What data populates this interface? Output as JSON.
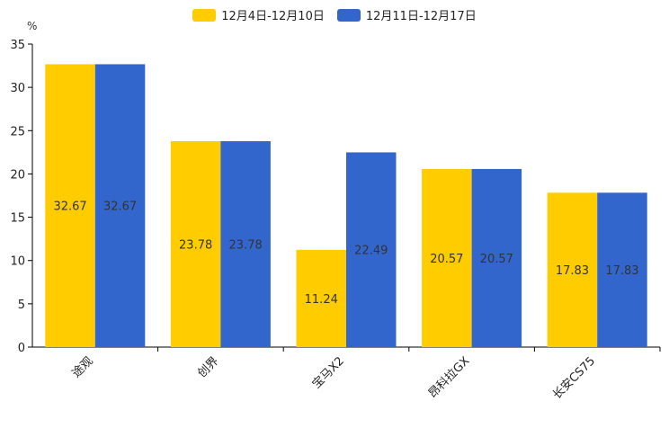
{
  "chart_data": {
    "type": "bar",
    "unit": "%",
    "categories": [
      "途观",
      "创界",
      "宝马X2",
      "昂科拉GX",
      "长安CS75"
    ],
    "series": [
      {
        "name": "12月4日-12月10日",
        "color": "#ffcc00",
        "values": [
          32.67,
          23.78,
          11.24,
          20.57,
          17.83
        ]
      },
      {
        "name": "12月11日-12月17日",
        "color": "#3366cc",
        "values": [
          32.67,
          23.78,
          22.49,
          20.57,
          17.83
        ]
      }
    ],
    "ylim": [
      0,
      35
    ],
    "yticks": [
      0,
      5,
      10,
      15,
      20,
      25,
      30,
      35
    ],
    "legend_position": "top-center",
    "grid": false
  }
}
